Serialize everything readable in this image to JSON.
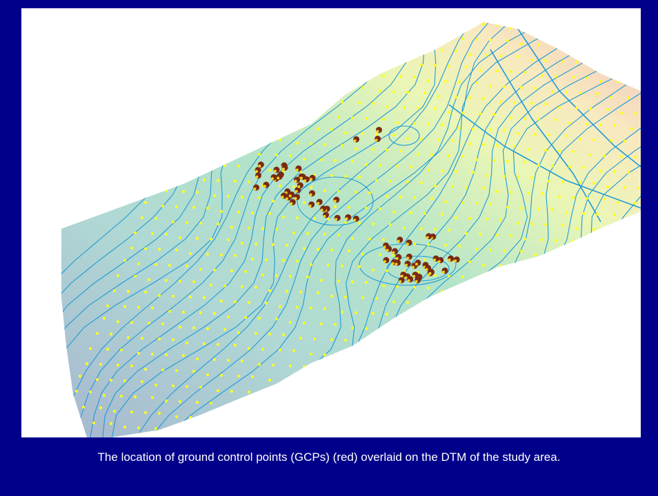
{
  "slide": {
    "caption": "The location of ground control points (GCPs)  (red) overlaid on the DTM of the study area.",
    "colors": {
      "background": "#00008b",
      "panel": "#ffffff",
      "contour": "#1e9ad6",
      "survey_points": "#ffff1a",
      "gcp_fill": "#7a2a12",
      "gcp_highlight": "#f2d21b"
    },
    "map_layers": [
      "dtm-surface",
      "contour-lines",
      "survey-points",
      "gcp-markers"
    ]
  }
}
